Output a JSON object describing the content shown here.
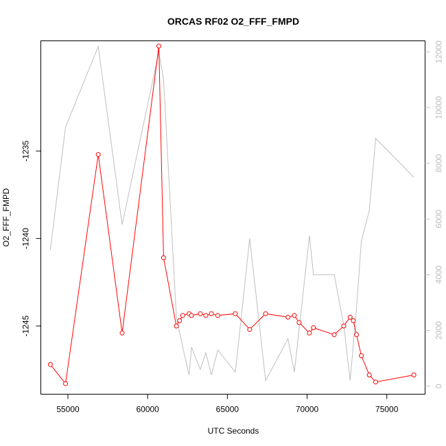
{
  "chart_data": {
    "type": "line",
    "title": "ORCAS RF02 O2_FFF_FMPD",
    "xlabel": "UTC Seconds",
    "ylabel": "O2_FFF_FMPD",
    "xlim": [
      53300,
      77400
    ],
    "ylim": [
      -1248.9,
      -1228.7
    ],
    "y2lim": [
      -290,
      12400
    ],
    "x_ticks": [
      55000,
      60000,
      65000,
      70000,
      75000
    ],
    "y_ticks": [
      -1235,
      -1240,
      -1245
    ],
    "y2_ticks": [
      0,
      2000,
      4000,
      6000,
      8000,
      10000,
      12000
    ],
    "colors": {
      "primary": "#ff0000",
      "secondary": "#bebebe"
    },
    "series": [
      {
        "axis": "left",
        "style": "line+points",
        "color": "#ff0000",
        "points": [
          [
            53900,
            -1247.2
          ],
          [
            54850,
            -1248.3
          ],
          [
            56900,
            -1235.2
          ],
          [
            58400,
            -1245.4
          ],
          [
            60700,
            -1229.0
          ],
          [
            61000,
            -1241.1
          ],
          [
            61800,
            -1245.0
          ],
          [
            62000,
            -1244.7
          ],
          [
            62200,
            -1244.4
          ],
          [
            62600,
            -1244.3
          ],
          [
            62750,
            -1244.4
          ],
          [
            63300,
            -1244.3
          ],
          [
            63650,
            -1244.4
          ],
          [
            64000,
            -1244.3
          ],
          [
            64400,
            -1244.4
          ],
          [
            65500,
            -1244.3
          ],
          [
            66400,
            -1245.2
          ],
          [
            67400,
            -1244.3
          ],
          [
            68800,
            -1244.5
          ],
          [
            69200,
            -1244.4
          ],
          [
            69500,
            -1244.8
          ],
          [
            70150,
            -1245.4
          ],
          [
            70400,
            -1245.1
          ],
          [
            71700,
            -1245.5
          ],
          [
            72300,
            -1245.0
          ],
          [
            72700,
            -1244.5
          ],
          [
            72900,
            -1244.7
          ],
          [
            73100,
            -1245.5
          ],
          [
            73400,
            -1246.7
          ],
          [
            73900,
            -1247.8
          ],
          [
            74300,
            -1248.2
          ],
          [
            76700,
            -1247.8
          ]
        ]
      },
      {
        "axis": "right",
        "style": "line",
        "color": "#bebebe",
        "points": [
          [
            53900,
            4900
          ],
          [
            54850,
            9300
          ],
          [
            56900,
            12200
          ],
          [
            58400,
            5800
          ],
          [
            60700,
            12000
          ],
          [
            61000,
            11000
          ],
          [
            61800,
            2500
          ],
          [
            62200,
            1400
          ],
          [
            62600,
            400
          ],
          [
            62750,
            1400
          ],
          [
            63300,
            600
          ],
          [
            63650,
            1200
          ],
          [
            64000,
            400
          ],
          [
            64400,
            1300
          ],
          [
            65500,
            500
          ],
          [
            66400,
            5300
          ],
          [
            67400,
            200
          ],
          [
            68800,
            1700
          ],
          [
            69200,
            500
          ],
          [
            70150,
            5400
          ],
          [
            70400,
            4000
          ],
          [
            71700,
            4000
          ],
          [
            72300,
            2200
          ],
          [
            72700,
            200
          ],
          [
            73100,
            2800
          ],
          [
            73400,
            5200
          ],
          [
            73900,
            6300
          ],
          [
            74300,
            8900
          ],
          [
            76700,
            7500
          ]
        ]
      }
    ]
  }
}
